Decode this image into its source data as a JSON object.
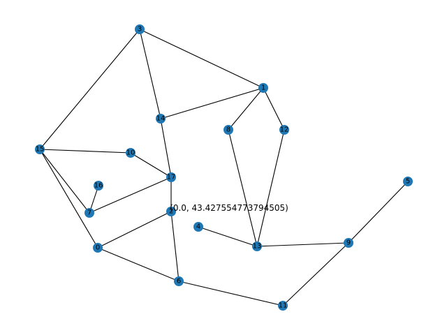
{
  "graph": {
    "node_color": "#1f77b4",
    "edge_color": "#000000",
    "nodes": [
      "0",
      "1",
      "2",
      "3",
      "4",
      "5",
      "6",
      "7",
      "8",
      "9",
      "10",
      "11",
      "12",
      "13",
      "14",
      "15",
      "16",
      "17"
    ],
    "edges": [
      [
        "3",
        "1"
      ],
      [
        "3",
        "14"
      ],
      [
        "3",
        "15"
      ],
      [
        "1",
        "14"
      ],
      [
        "1",
        "8"
      ],
      [
        "1",
        "12"
      ],
      [
        "14",
        "17"
      ],
      [
        "15",
        "10"
      ],
      [
        "15",
        "7"
      ],
      [
        "15",
        "0"
      ],
      [
        "10",
        "17"
      ],
      [
        "17",
        "7"
      ],
      [
        "17",
        "2"
      ],
      [
        "16",
        "7"
      ],
      [
        "2",
        "0"
      ],
      [
        "2",
        "6"
      ],
      [
        "0",
        "6"
      ],
      [
        "6",
        "11"
      ],
      [
        "8",
        "13"
      ],
      [
        "12",
        "13"
      ],
      [
        "4",
        "13"
      ],
      [
        "13",
        "9"
      ],
      [
        "9",
        "5"
      ],
      [
        "9",
        "11"
      ]
    ]
  },
  "annotation": "(0.0, 43.427554773794505)"
}
